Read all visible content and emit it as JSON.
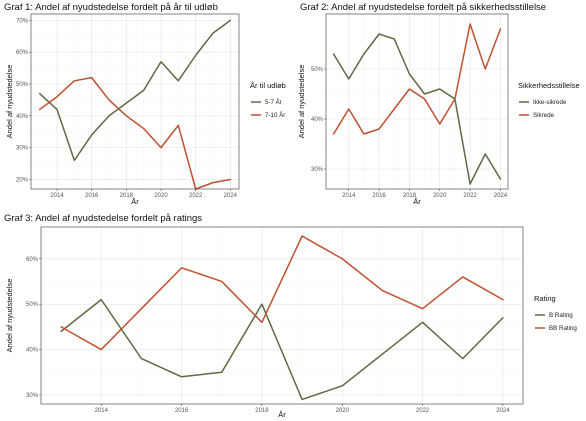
{
  "chart_data": [
    {
      "id": "g1",
      "type": "line",
      "title": "Graf 1: Andel af nyudstedelse fordelt på år til udløb",
      "xlabel": "År",
      "ylabel": "Andel af nyudstedelse",
      "xlim": [
        2012.5,
        2024.5
      ],
      "ylim": [
        17,
        72
      ],
      "xticks": [
        2014,
        2016,
        2018,
        2020,
        2022,
        2024
      ],
      "yticks": [
        20,
        30,
        40,
        50,
        60,
        70
      ],
      "ytick_labels": [
        "20%",
        "30%",
        "40%",
        "50%",
        "60%",
        "70%"
      ],
      "legend_title": "År til udløb",
      "legend_position": "right",
      "grid": true,
      "x": [
        2013,
        2014,
        2015,
        2016,
        2017,
        2018,
        2019,
        2020,
        2021,
        2022,
        2023,
        2024
      ],
      "series": [
        {
          "name": "5-7 År",
          "color": "#5a6b45",
          "values": [
            47,
            42,
            26,
            34,
            40,
            44,
            48,
            57,
            51,
            59,
            66,
            70
          ]
        },
        {
          "name": "7-10 År",
          "color": "#c0502f",
          "values": [
            42,
            46,
            51,
            52,
            45,
            40,
            36,
            30,
            37,
            17,
            19,
            20
          ]
        }
      ]
    },
    {
      "id": "g2",
      "type": "line",
      "title": "Graf 2: Andel af nyudstedelse fordelt på sikkerhedsstillelse",
      "xlabel": "År",
      "ylabel": "Andel af nyudstedelse",
      "xlim": [
        2012.5,
        2024.5
      ],
      "ylim": [
        26,
        61
      ],
      "xticks": [
        2014,
        2016,
        2018,
        2020,
        2022,
        2024
      ],
      "yticks": [
        30,
        40,
        50
      ],
      "ytick_labels": [
        "30%",
        "40%",
        "50%"
      ],
      "legend_title": "Sikkerhedsstillelse",
      "legend_position": "right",
      "grid": true,
      "x": [
        2013,
        2014,
        2015,
        2016,
        2017,
        2018,
        2019,
        2020,
        2021,
        2022,
        2023,
        2024
      ],
      "series": [
        {
          "name": "Ikke-sikrede",
          "color": "#5a6b45",
          "values": [
            53,
            48,
            53,
            57,
            56,
            49,
            45,
            46,
            44,
            27,
            33,
            28
          ]
        },
        {
          "name": "Sikrede",
          "color": "#c0502f",
          "values": [
            37,
            42,
            37,
            38,
            42,
            46,
            44,
            39,
            44,
            59,
            50,
            58
          ]
        }
      ]
    },
    {
      "id": "g3",
      "type": "line",
      "title": "Graf 3: Andel af nyudstedelse fordelt på ratings",
      "xlabel": "År",
      "ylabel": "Andel af nyudstedelse",
      "xlim": [
        2012.5,
        2024.5
      ],
      "ylim": [
        28,
        67
      ],
      "xticks": [
        2014,
        2016,
        2018,
        2020,
        2022,
        2024
      ],
      "yticks": [
        30,
        40,
        50,
        60
      ],
      "ytick_labels": [
        "30%",
        "40%",
        "50%",
        "60%"
      ],
      "legend_title": "Rating",
      "legend_position": "right",
      "grid": true,
      "x": [
        2013,
        2014,
        2015,
        2016,
        2017,
        2018,
        2019,
        2020,
        2021,
        2022,
        2023,
        2024
      ],
      "series": [
        {
          "name": "B Rating",
          "color": "#5a6b45",
          "values": [
            44,
            51,
            38,
            34,
            35,
            50,
            29,
            32,
            39,
            46,
            38,
            47
          ]
        },
        {
          "name": "BB Rating",
          "color": "#c0502f",
          "values": [
            45,
            40,
            49,
            58,
            55,
            46,
            65,
            60,
            53,
            49,
            56,
            51
          ]
        }
      ]
    }
  ]
}
